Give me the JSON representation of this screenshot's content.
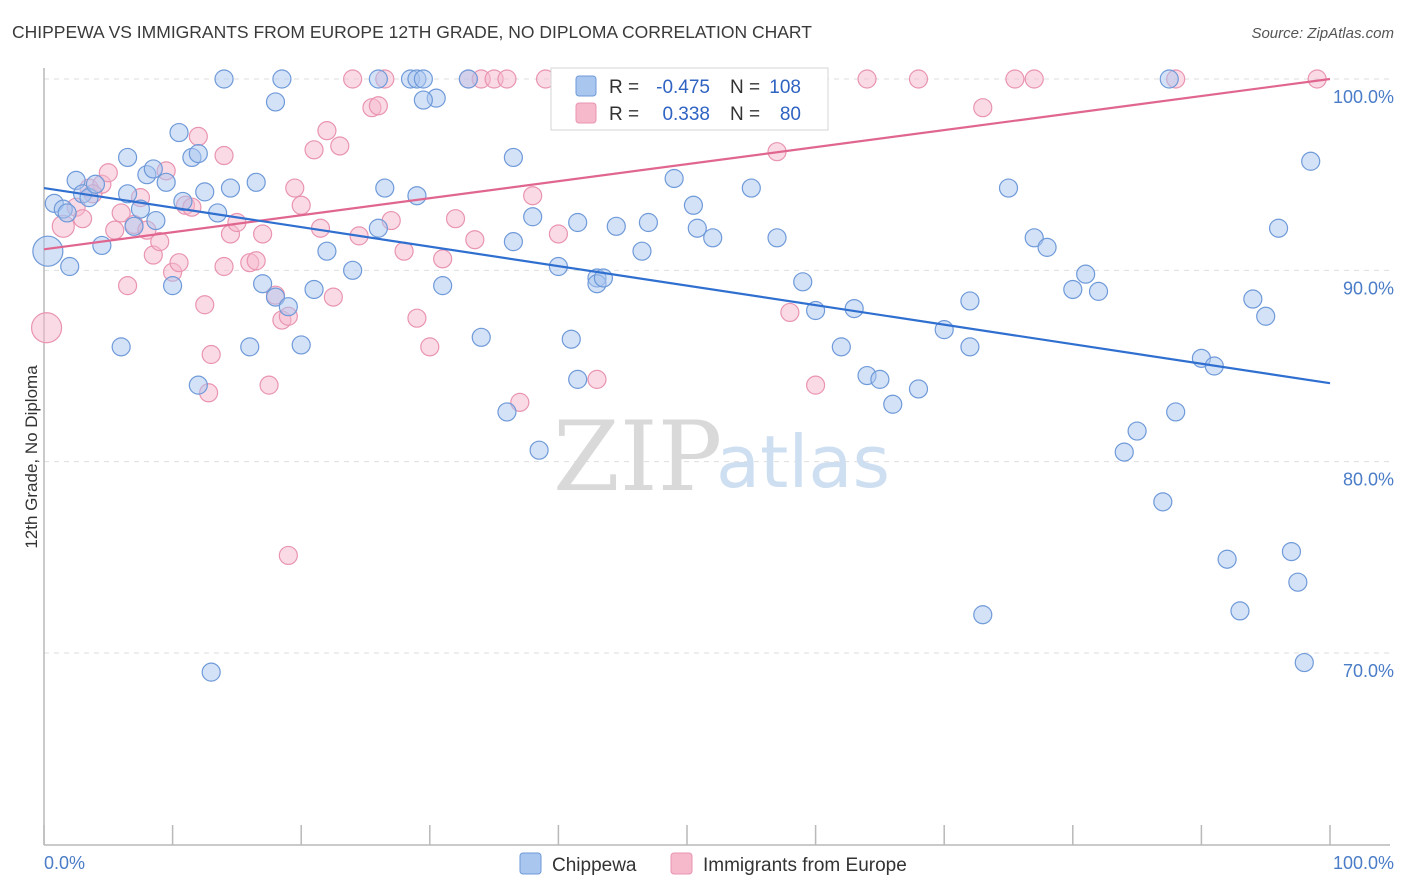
{
  "title": "CHIPPEWA VS IMMIGRANTS FROM EUROPE 12TH GRADE, NO DIPLOMA CORRELATION CHART",
  "source": "Source: ZipAtlas.com",
  "watermark": {
    "zip": "ZIP",
    "atlas": "atlas"
  },
  "colors": {
    "blue_fill": "#a9c6ef",
    "blue_stroke": "#6f9ad9",
    "blue_line": "#2f6fd0",
    "pink_fill": "#f6b8cb",
    "pink_stroke": "#e994b0",
    "pink_line": "#e0668f",
    "tick_label": "#4a7cc7"
  },
  "legend": {
    "rows": [
      {
        "r_label": "R =",
        "r_value": "-0.475",
        "n_label": "N =",
        "n_value": "108"
      },
      {
        "r_label": "R =",
        "r_value": "0.338",
        "n_label": "N =",
        "n_value": "80"
      }
    ]
  },
  "bottom_legend": [
    "Chippewa",
    "Immigrants from Europe"
  ],
  "chart_data": {
    "type": "scatter",
    "title": "CHIPPEWA VS IMMIGRANTS FROM EUROPE 12TH GRADE, NO DIPLOMA CORRELATION CHART",
    "xlabel": "",
    "ylabel": "12th Grade, No Diploma",
    "xlim": [
      0,
      100
    ],
    "ylim": [
      60,
      101.5
    ],
    "x_tick_labels": [
      "0.0%",
      "100.0%"
    ],
    "y_ticks": [
      70,
      80,
      90,
      100
    ],
    "y_tick_labels": [
      "70.0%",
      "80.0%",
      "90.0%",
      "100.0%"
    ],
    "grid": true,
    "series": [
      {
        "name": "Chippewa",
        "color": "#a9c6ef",
        "trend": {
          "x": [
            0,
            100
          ],
          "y": [
            94.3,
            84.1
          ]
        },
        "points": [
          [
            0.3,
            91.0
          ],
          [
            0.8,
            93.5
          ],
          [
            1.5,
            93.2
          ],
          [
            2.0,
            90.2
          ],
          [
            2.5,
            94.7
          ],
          [
            1.8,
            93.0
          ],
          [
            3.0,
            94.0
          ],
          [
            3.5,
            93.8
          ],
          [
            4.0,
            94.5
          ],
          [
            6.5,
            95.9
          ],
          [
            6.5,
            94.0
          ],
          [
            7.0,
            92.3
          ],
          [
            8.0,
            95.0
          ],
          [
            8.5,
            95.3
          ],
          [
            8.7,
            92.6
          ],
          [
            9.5,
            94.6
          ],
          [
            10.5,
            97.2
          ],
          [
            10.8,
            93.6
          ],
          [
            11.5,
            95.9
          ],
          [
            12.0,
            96.1
          ],
          [
            12.5,
            94.1
          ],
          [
            13.5,
            93.0
          ],
          [
            14.5,
            94.3
          ],
          [
            16.5,
            94.6
          ],
          [
            18.0,
            98.8
          ],
          [
            18.5,
            100
          ],
          [
            26,
            100
          ],
          [
            28.5,
            100
          ],
          [
            29,
            100
          ],
          [
            30.5,
            99.0
          ],
          [
            29.5,
            100
          ],
          [
            36.5,
            95.9
          ],
          [
            38,
            92.8
          ],
          [
            40,
            90.2
          ],
          [
            41.5,
            92.5
          ],
          [
            43,
            89.6
          ],
          [
            44.5,
            92.3
          ],
          [
            47,
            92.5
          ],
          [
            46.5,
            91.0
          ],
          [
            49,
            94.8
          ],
          [
            50.5,
            93.4
          ],
          [
            50.8,
            92.2
          ],
          [
            52,
            91.7
          ],
          [
            55,
            94.3
          ],
          [
            57,
            91.7
          ],
          [
            59,
            89.4
          ],
          [
            60,
            87.9
          ],
          [
            63,
            88.0
          ],
          [
            62,
            86.0
          ],
          [
            64,
            84.5
          ],
          [
            65,
            84.3
          ],
          [
            66,
            83.0
          ],
          [
            68,
            83.8
          ],
          [
            70,
            86.9
          ],
          [
            72,
            86.0
          ],
          [
            75,
            94.3
          ],
          [
            77,
            91.7
          ],
          [
            78,
            91.2
          ],
          [
            80,
            89.0
          ],
          [
            81,
            89.8
          ],
          [
            82,
            88.9
          ],
          [
            84,
            80.5
          ],
          [
            85,
            81.6
          ],
          [
            87,
            77.9
          ],
          [
            87.5,
            100
          ],
          [
            88,
            82.6
          ],
          [
            90,
            85.4
          ],
          [
            91,
            85.0
          ],
          [
            92,
            74.9
          ],
          [
            93,
            72.2
          ],
          [
            94,
            88.5
          ],
          [
            95,
            87.6
          ],
          [
            96,
            92.2
          ],
          [
            97,
            75.3
          ],
          [
            97.5,
            73.7
          ],
          [
            98,
            69.5
          ],
          [
            98.5,
            95.7
          ],
          [
            4.5,
            91.3
          ],
          [
            6.0,
            86.0
          ],
          [
            7.5,
            93.2
          ],
          [
            12,
            84.0
          ],
          [
            13,
            69.0
          ],
          [
            16,
            86.0
          ],
          [
            17,
            89.3
          ],
          [
            18,
            88.6
          ],
          [
            19,
            88.1
          ],
          [
            20,
            86.1
          ],
          [
            21,
            89.0
          ],
          [
            22,
            91.0
          ],
          [
            26,
            92.2
          ],
          [
            29,
            93.9
          ],
          [
            31,
            89.2
          ],
          [
            34,
            86.5
          ],
          [
            36,
            82.6
          ],
          [
            41,
            86.4
          ],
          [
            41.5,
            84.3
          ],
          [
            43,
            89.3
          ],
          [
            36.5,
            91.5
          ],
          [
            38.5,
            80.6
          ],
          [
            72,
            88.4
          ],
          [
            73,
            72.0
          ],
          [
            26.5,
            94.3
          ],
          [
            14,
            100
          ],
          [
            33,
            100
          ],
          [
            29.5,
            98.9
          ],
          [
            10,
            89.2
          ],
          [
            24,
            90.0
          ],
          [
            43.5,
            89.6
          ]
        ]
      },
      {
        "name": "Immigrants from Europe",
        "color": "#f6b8cb",
        "trend": {
          "x": [
            0,
            100
          ],
          "y": [
            91.1,
            100.0
          ]
        },
        "points": [
          [
            0.2,
            87.0
          ],
          [
            1.5,
            92.3
          ],
          [
            2.5,
            93.3
          ],
          [
            3.0,
            92.7
          ],
          [
            3.5,
            94.3
          ],
          [
            4.5,
            94.5
          ],
          [
            5.0,
            95.1
          ],
          [
            5.5,
            92.1
          ],
          [
            6.0,
            93.0
          ],
          [
            7.0,
            92.4
          ],
          [
            7.5,
            93.8
          ],
          [
            8.0,
            92.1
          ],
          [
            8.5,
            90.8
          ],
          [
            9.0,
            91.5
          ],
          [
            10.0,
            89.9
          ],
          [
            10.5,
            90.4
          ],
          [
            11.0,
            93.4
          ],
          [
            12.0,
            97.0
          ],
          [
            12.5,
            88.2
          ],
          [
            13.0,
            85.6
          ],
          [
            14.0,
            90.2
          ],
          [
            14.5,
            91.9
          ],
          [
            15.0,
            92.5
          ],
          [
            16.0,
            90.4
          ],
          [
            17.0,
            91.9
          ],
          [
            18.0,
            88.7
          ],
          [
            18.5,
            87.4
          ],
          [
            19.0,
            87.6
          ],
          [
            19.5,
            94.3
          ],
          [
            20.0,
            93.4
          ],
          [
            21.0,
            96.3
          ],
          [
            22.0,
            97.3
          ],
          [
            22.5,
            88.6
          ],
          [
            23.0,
            96.5
          ],
          [
            24.0,
            100
          ],
          [
            25.5,
            98.5
          ],
          [
            26.5,
            100
          ],
          [
            27.0,
            92.6
          ],
          [
            28.0,
            91.0
          ],
          [
            29.0,
            87.5
          ],
          [
            30.0,
            86.0
          ],
          [
            31.0,
            90.6
          ],
          [
            32.0,
            92.7
          ],
          [
            33.0,
            100
          ],
          [
            34.0,
            100
          ],
          [
            35.0,
            100
          ],
          [
            36.0,
            100
          ],
          [
            37.0,
            83.1
          ],
          [
            38.0,
            93.9
          ],
          [
            39.0,
            100
          ],
          [
            40.0,
            91.9
          ],
          [
            41.5,
            100
          ],
          [
            43.0,
            84.3
          ],
          [
            45.0,
            100
          ],
          [
            48.0,
            100
          ],
          [
            51.0,
            100
          ],
          [
            55.0,
            100
          ],
          [
            57.0,
            96.2
          ],
          [
            58.0,
            87.8
          ],
          [
            60.0,
            84.0
          ],
          [
            64.0,
            100
          ],
          [
            68.0,
            100
          ],
          [
            73.0,
            98.5
          ],
          [
            75.5,
            100
          ],
          [
            77.0,
            100
          ],
          [
            88.0,
            100
          ],
          [
            99.0,
            100
          ],
          [
            6.5,
            89.2
          ],
          [
            12.8,
            83.6
          ],
          [
            19.0,
            75.1
          ],
          [
            16.5,
            90.5
          ],
          [
            21.5,
            92.2
          ],
          [
            33.5,
            91.6
          ],
          [
            17.5,
            84.0
          ],
          [
            9.5,
            95.2
          ],
          [
            11.5,
            93.3
          ],
          [
            3.8,
            94.0
          ],
          [
            24.5,
            91.8
          ],
          [
            14.0,
            96.0
          ],
          [
            26.0,
            98.6
          ]
        ]
      }
    ]
  }
}
